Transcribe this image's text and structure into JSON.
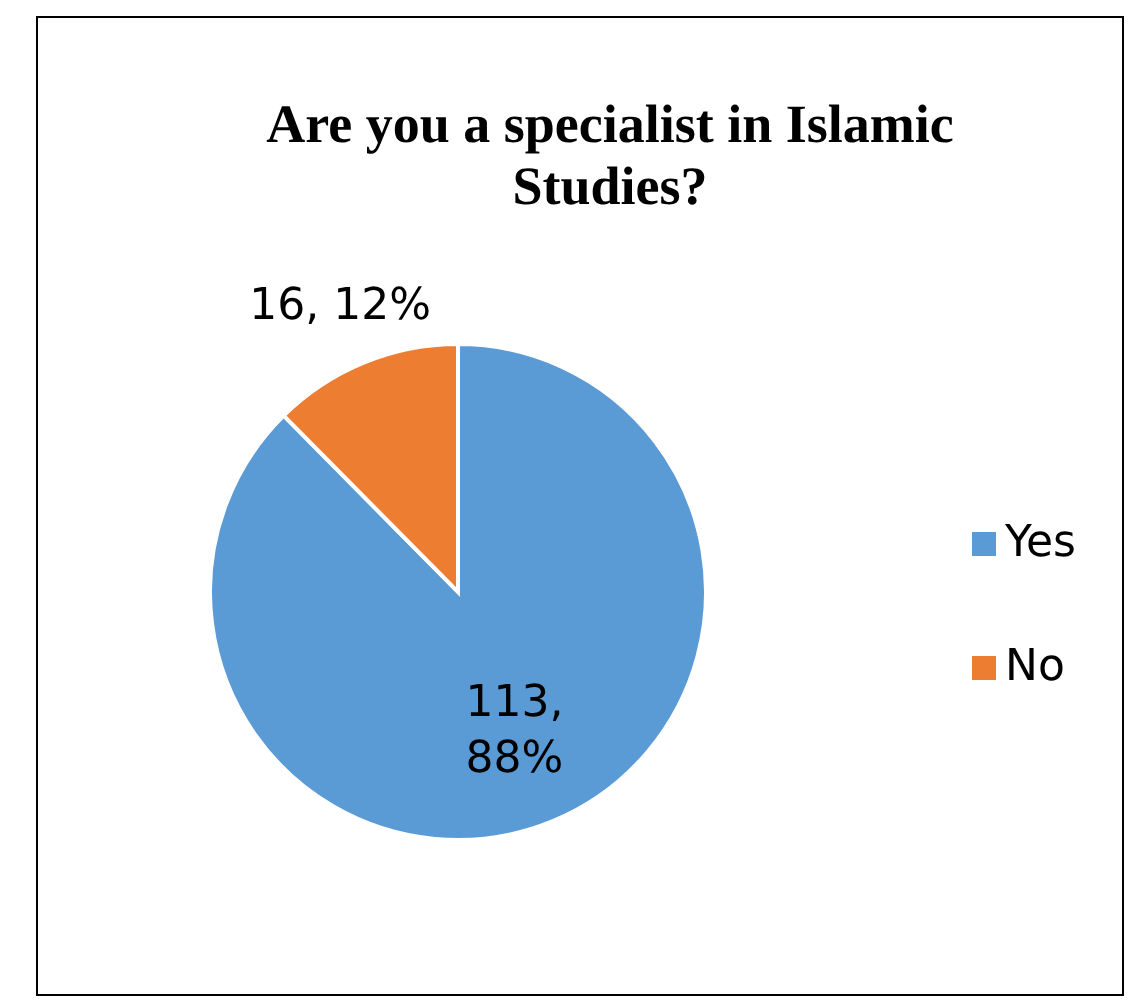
{
  "chart_data": {
    "type": "pie",
    "title": "Are you a specialist in Islamic Studies?",
    "categories": [
      "Yes",
      "No"
    ],
    "values": [
      113,
      16
    ],
    "colors": [
      "#5b9bd5",
      "#ed7d31"
    ],
    "value_labels": [
      "113, 88%",
      "16, 12%"
    ],
    "legend": "right"
  }
}
